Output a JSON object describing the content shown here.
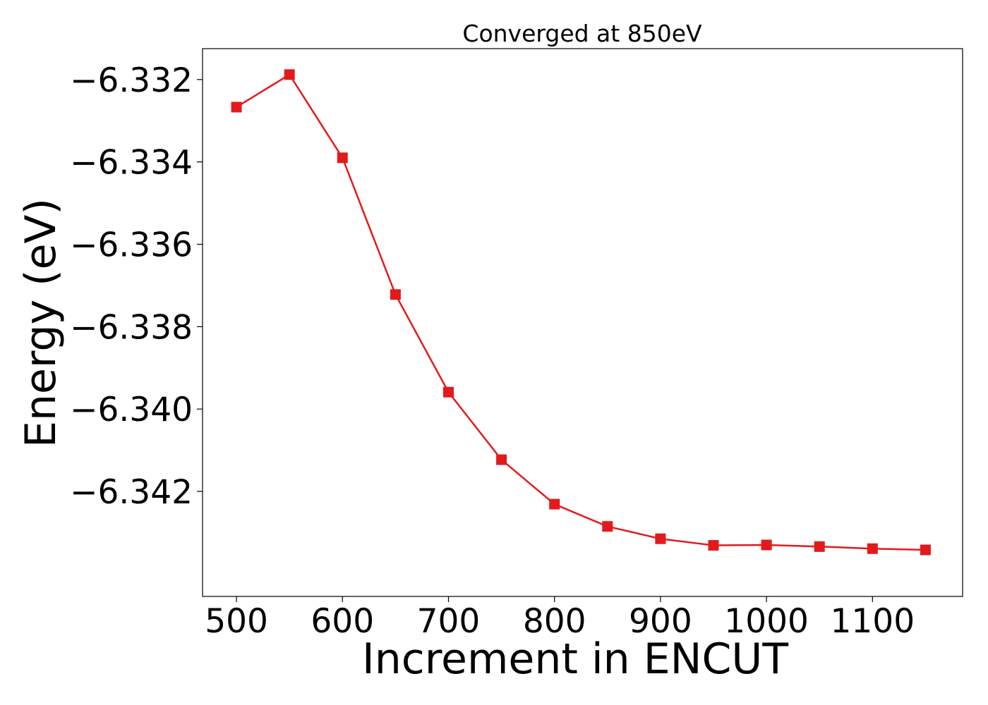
{
  "chart_data": {
    "type": "line",
    "title": "Converged at 850eV",
    "xlabel": "Increment in ENCUT",
    "ylabel": "Energy (eV)",
    "xlim": [
      468,
      1185
    ],
    "ylim": [
      -6.34455,
      -6.33125
    ],
    "xticks": [
      500,
      600,
      700,
      800,
      900,
      1000,
      1100
    ],
    "xtick_labels": [
      "500",
      "600",
      "700",
      "800",
      "900",
      "1000",
      "1100"
    ],
    "yticks": [
      -6.332,
      -6.334,
      -6.336,
      -6.338,
      -6.34,
      -6.342
    ],
    "ytick_labels": [
      "−6.332",
      "−6.334",
      "−6.336",
      "−6.338",
      "−6.340",
      "−6.342"
    ],
    "grid": false,
    "series": [
      {
        "color": "#e31a1c",
        "marker": "square",
        "x": [
          500,
          550,
          600,
          650,
          700,
          750,
          800,
          850,
          900,
          950,
          1000,
          1050,
          1100,
          1150
        ],
        "y": [
          -6.33267,
          -6.33188,
          -6.3339,
          -6.33722,
          -6.33959,
          -6.34123,
          -6.34231,
          -6.34285,
          -6.34315,
          -6.34331,
          -6.3433,
          -6.34334,
          -6.34339,
          -6.34342
        ]
      }
    ]
  }
}
